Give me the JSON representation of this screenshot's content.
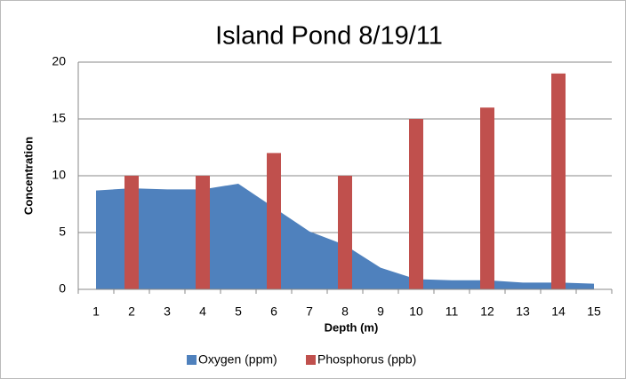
{
  "chart_data": {
    "type": "combo",
    "title": "Island Pond 8/19/11",
    "x_label": "Depth (m)",
    "y_label": "Concentration",
    "categories": [
      "1",
      "2",
      "3",
      "4",
      "5",
      "6",
      "7",
      "8",
      "9",
      "10",
      "11",
      "12",
      "13",
      "14",
      "15"
    ],
    "series": [
      {
        "name": "Oxygen (ppm)",
        "type": "area",
        "color": "#4f81bd",
        "values": [
          8.7,
          8.9,
          8.8,
          8.8,
          9.3,
          7.2,
          5.1,
          3.9,
          1.9,
          0.9,
          0.8,
          0.8,
          0.6,
          0.6,
          0.5
        ]
      },
      {
        "name": "Phosphorus (ppb)",
        "type": "bar",
        "color": "#c0504d",
        "values": [
          null,
          10,
          null,
          10,
          null,
          12,
          null,
          10,
          null,
          15,
          null,
          16,
          null,
          19,
          null
        ]
      }
    ],
    "ylim": [
      0,
      20
    ],
    "yticks": [
      0,
      5,
      10,
      15,
      20
    ],
    "grid": true,
    "legend": "bottom"
  }
}
